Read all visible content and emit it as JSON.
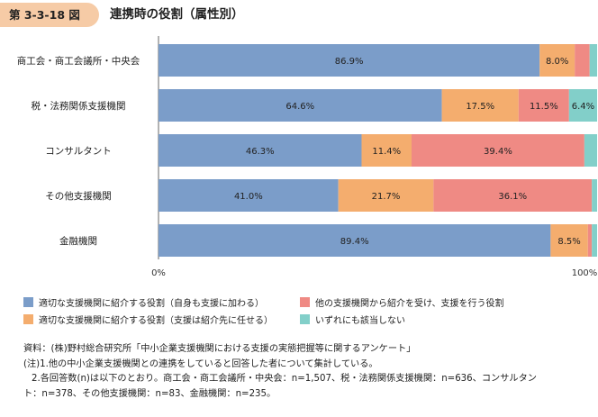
{
  "header": {
    "figure_number": "第 3-3-18 図",
    "title": "連携時の役割（属性別）"
  },
  "chart_data": {
    "type": "bar",
    "orientation": "horizontal",
    "stacked": true,
    "categories": [
      "商工会・商工会議所・中央会",
      "税・法務関係支援機関",
      "コンサルタント",
      "その他支援機関",
      "金融機関"
    ],
    "series": [
      {
        "name": "適切な支援機関に紹介する役割（自身も支援に加わる）",
        "color": "#7b9dc9",
        "values": [
          86.9,
          64.6,
          46.3,
          41.0,
          89.4
        ]
      },
      {
        "name": "適切な支援機関に紹介する役割（支援は紹介先に任せる）",
        "color": "#f4ad6e",
        "values": [
          8.0,
          17.5,
          11.4,
          21.7,
          8.5
        ]
      },
      {
        "name": "他の支援機関から紹介を受け、支援を行う役割",
        "color": "#ef8a84",
        "values": [
          3.4,
          11.5,
          39.4,
          36.1,
          0.9
        ]
      },
      {
        "name": "いずれにも該当しない",
        "color": "#82cfc9",
        "values": [
          1.7,
          6.4,
          2.9,
          1.2,
          1.2
        ]
      }
    ],
    "data_labels": [
      [
        "86.9%",
        "8.0%",
        "",
        ""
      ],
      [
        "64.6%",
        "17.5%",
        "11.5%",
        "6.4%"
      ],
      [
        "46.3%",
        "11.4%",
        "39.4%",
        ""
      ],
      [
        "41.0%",
        "21.7%",
        "36.1%",
        ""
      ],
      [
        "89.4%",
        "8.5%",
        "",
        ""
      ]
    ],
    "xlim": [
      0,
      100
    ],
    "x_tick_labels": [
      "0%",
      "100%"
    ],
    "legend_position": "bottom"
  },
  "notes": {
    "line1": "資料：(株)野村総合研究所「中小企業支援機関における支援の実態把握等に関するアンケート」",
    "line2": "(注)1.他の中小企業支援機関との連携をしていると回答した者について集計している。",
    "line3": "2.各回答数(n)は以下のとおり。商工会・商工会議所・中央会：n=1,507、税・法務関係支援機関：n=636、コンサルタン",
    "line4": "ト：n=378、その他支援機関：n=83、金融機関：n=235。"
  }
}
